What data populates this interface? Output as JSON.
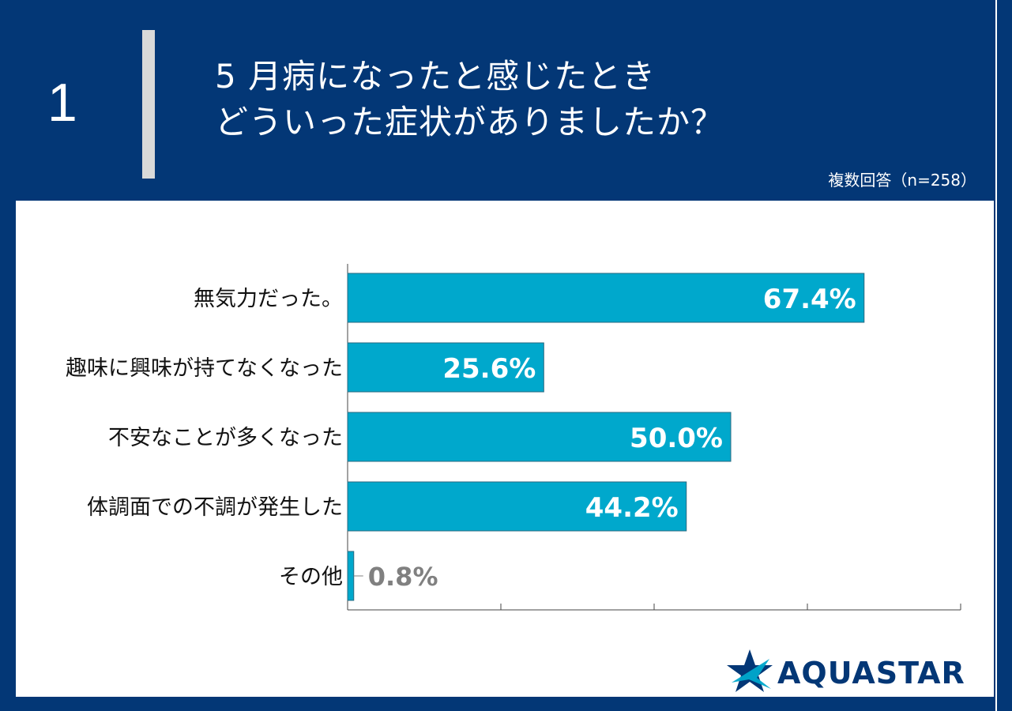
{
  "header": {
    "question_number": "1",
    "title_line1": "5 月病になったと感じたとき",
    "title_line2": "どういった症状がありましたか？",
    "sample_note": "複数回答（n=258）"
  },
  "colors": {
    "header_bg": "#033776",
    "bar": "#00a8cc",
    "bar_stroke": "#2a6a80",
    "value_label_inside": "#ffffff",
    "value_label_outside": "#808080",
    "category_text": "#111111",
    "axis": "#444444"
  },
  "chart_data": {
    "type": "bar",
    "orientation": "horizontal",
    "categories": [
      "無気力だった。",
      "趣味に興味が持てなくなった",
      "不安なことが多くなった",
      "体調面での不調が発生した",
      "その他"
    ],
    "values": [
      67.4,
      25.6,
      50.0,
      44.2,
      0.8
    ],
    "value_labels": [
      "67.4%",
      "25.6%",
      "50.0%",
      "44.2%",
      "0.8%"
    ],
    "xlim": [
      0,
      80
    ],
    "x_ticks": [
      0,
      20,
      40,
      60,
      80
    ],
    "grid": false,
    "legend": "none"
  },
  "logo": {
    "text": "AQUASTAR",
    "icon": "star-icon"
  }
}
